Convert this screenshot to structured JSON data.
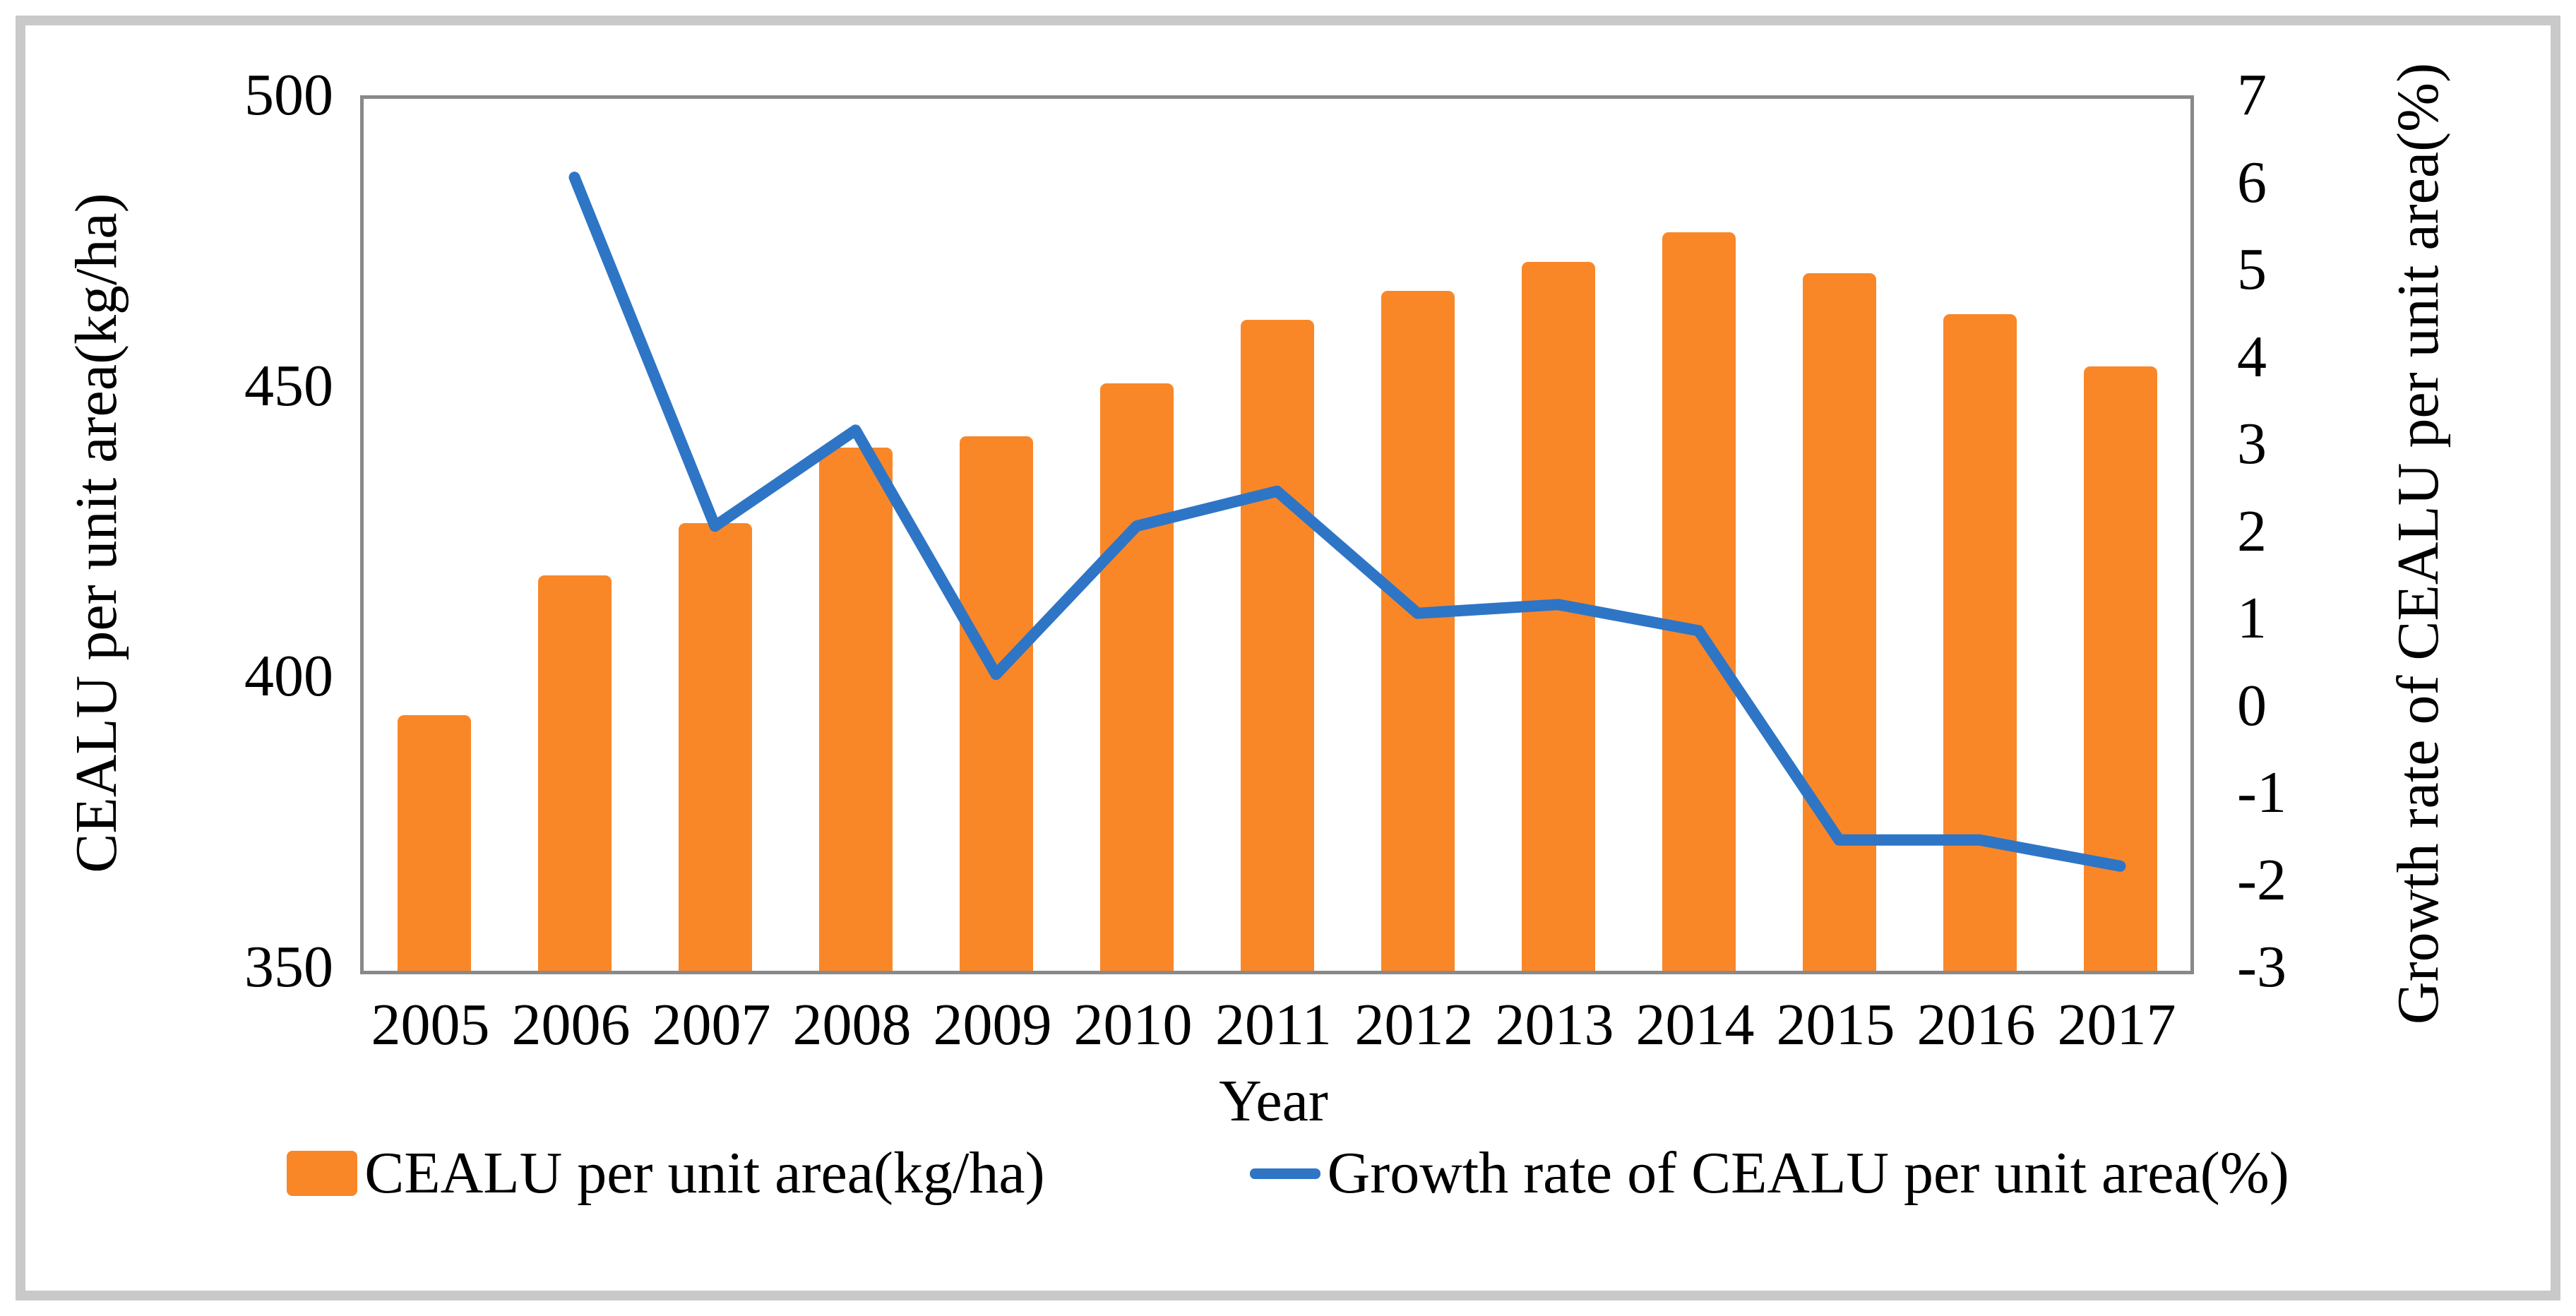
{
  "chart_data": {
    "type": "bar",
    "subtype": "bar-with-line-dual-axis",
    "categories": [
      "2005",
      "2006",
      "2007",
      "2008",
      "2009",
      "2010",
      "2011",
      "2012",
      "2013",
      "2014",
      "2015",
      "2016",
      "2017"
    ],
    "series": [
      {
        "name": "CEALU per unit area(kg/ha)",
        "type": "bar",
        "yaxis": "left",
        "values": [
          394,
          418,
          427,
          440,
          442,
          451,
          462,
          467,
          472,
          477,
          470,
          463,
          454
        ]
      },
      {
        "name": "Growth rate of CEALU per unit area(%)",
        "type": "line",
        "yaxis": "right",
        "values": [
          null,
          6.1,
          2.1,
          3.2,
          0.4,
          2.1,
          2.5,
          1.1,
          1.2,
          0.9,
          -1.5,
          -1.5,
          -1.8
        ]
      }
    ],
    "left_axis": {
      "title": "CEALU per unit area(kg/ha)",
      "min": 350,
      "max": 500,
      "tick_values": [
        500,
        450,
        400,
        350
      ],
      "tick_labels": [
        "500",
        "450",
        "400",
        "350"
      ]
    },
    "right_axis": {
      "title": "Growth rate of CEALU per unit area(%)",
      "min": -3,
      "max": 7,
      "tick_values": [
        7,
        6,
        5,
        4,
        3,
        2,
        1,
        0,
        -1,
        -2,
        -3
      ],
      "tick_labels": [
        "7",
        "6",
        "5",
        "4",
        "3",
        "2",
        "1",
        "0",
        "-1",
        "-2",
        "-3"
      ]
    },
    "xlabel": "Year",
    "legend": [
      "CEALU per unit area(kg/ha)",
      "Growth rate of CEALU per unit area(%)"
    ],
    "legend_position": "bottom",
    "grid": false
  },
  "colors": {
    "bar": "#F98728",
    "line": "#2E75C6",
    "plot_frame": "#898989",
    "outer_border": "#C9C9C9",
    "text": "#000000",
    "background": "#FFFFFF"
  }
}
